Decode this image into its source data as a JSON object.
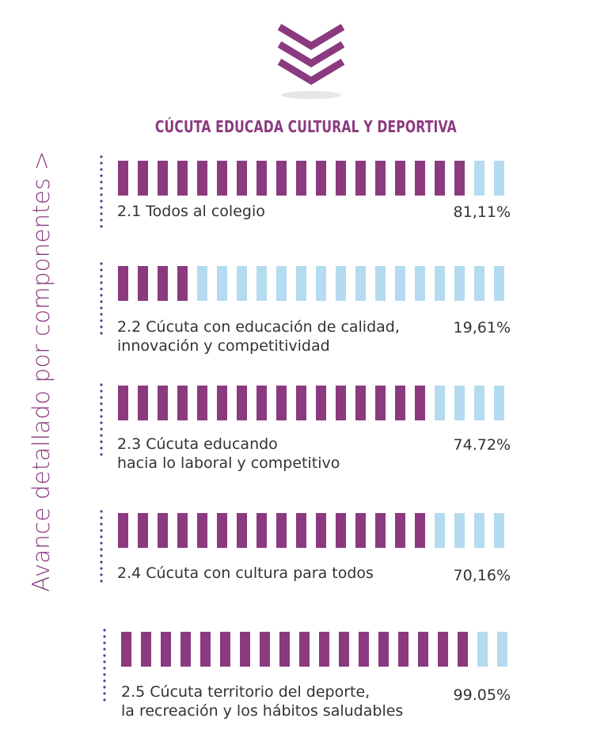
{
  "header": {
    "title": "CÚCUTA EDUCADA CULTURAL Y DEPORTIVA",
    "side_label": "Avance detallado por  componentes  >",
    "icon": "triple-chevron-down-icon"
  },
  "colors": {
    "filled": "#8b3a7f",
    "empty": "#b4dbef",
    "dots": "#5b3a8a",
    "text": "#333333"
  },
  "chart_data": {
    "type": "bar",
    "title": "CÚCUTA EDUCADA CULTURAL Y DEPORTIVA",
    "segments_per_bar": 20,
    "items": [
      {
        "label_line1": "2.1 Todos al colegio",
        "label_line2": "",
        "value_text": "81,11%",
        "value": 81.11,
        "filled_segments": 18
      },
      {
        "label_line1": "2.2 Cúcuta con educación de calidad,",
        "label_line2": "innovación y competitividad",
        "value_text": "19,61%",
        "value": 19.61,
        "filled_segments": 4
      },
      {
        "label_line1": "2.3 Cúcuta educando",
        "label_line2": "hacia lo laboral y competitivo",
        "value_text": "74.72%",
        "value": 74.72,
        "filled_segments": 16
      },
      {
        "label_line1": "2.4 Cúcuta con cultura para todos",
        "label_line2": "",
        "value_text": "70,16%",
        "value": 70.16,
        "filled_segments": 16
      },
      {
        "label_line1": "2.5 Cúcuta territorio del deporte,",
        "label_line2": "la recreación y los hábitos saludables",
        "value_text": "99.05%",
        "value": 99.05,
        "filled_segments": 18
      }
    ]
  }
}
